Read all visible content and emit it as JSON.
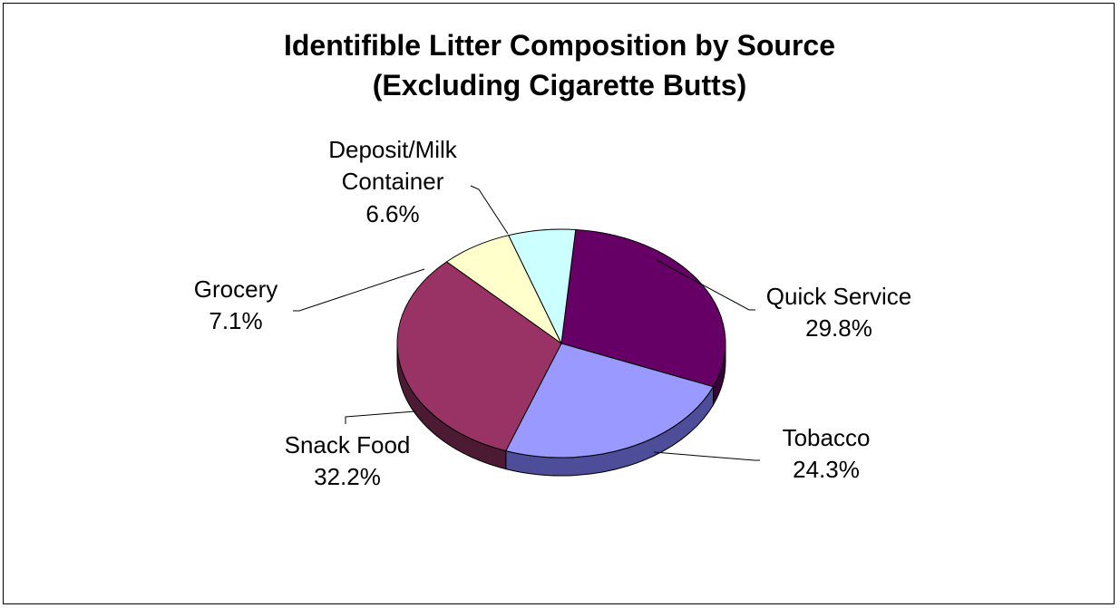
{
  "chart_data": {
    "type": "pie",
    "title_lines": [
      "Identifible Litter Composition by Source",
      "(Excluding Cigarette Butts)"
    ],
    "slices": [
      {
        "name": "Quick Service",
        "value": 29.8,
        "label": "29.8%",
        "color": "#660066",
        "side_color": "#3a003a"
      },
      {
        "name": "Tobacco",
        "value": 24.3,
        "label": "24.3%",
        "color": "#9999ff",
        "side_color": "#4d4d99"
      },
      {
        "name": "Snack Food",
        "value": 32.2,
        "label": "32.2%",
        "color": "#993366",
        "side_color": "#4d1a33"
      },
      {
        "name": "Grocery",
        "value": 7.1,
        "label": "7.1%",
        "color": "#ffffcc",
        "side_color": "#99997a"
      },
      {
        "name": "Deposit/Milk Container",
        "value": 6.6,
        "label": "6.6%",
        "color": "#ccffff",
        "side_color": "#7a9999"
      }
    ],
    "style": "3d-pie",
    "legend": "none"
  }
}
